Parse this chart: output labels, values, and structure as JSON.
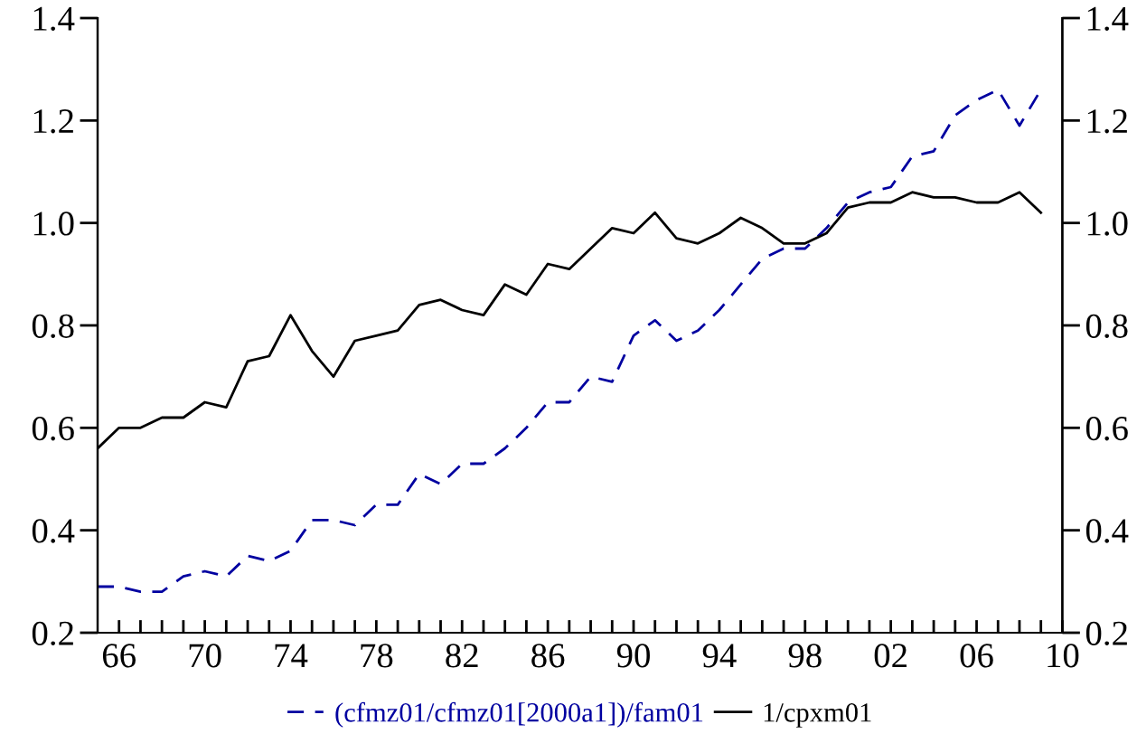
{
  "chart_data": {
    "type": "line",
    "x": [
      1965,
      1966,
      1967,
      1968,
      1969,
      1970,
      1971,
      1972,
      1973,
      1974,
      1975,
      1976,
      1977,
      1978,
      1979,
      1980,
      1981,
      1982,
      1983,
      1984,
      1985,
      1986,
      1987,
      1988,
      1989,
      1990,
      1991,
      1992,
      1993,
      1994,
      1995,
      1996,
      1997,
      1998,
      1999,
      2000,
      2001,
      2002,
      2003,
      2004,
      2005,
      2006,
      2007,
      2008,
      2009
    ],
    "series": [
      {
        "name": "(cfmz01/cfmz01[2000a1])/fam01",
        "color": "#0000a0",
        "line_style": "dashed",
        "values": [
          0.29,
          0.29,
          0.28,
          0.28,
          0.31,
          0.32,
          0.31,
          0.35,
          0.34,
          0.36,
          0.42,
          0.42,
          0.41,
          0.45,
          0.45,
          0.51,
          0.49,
          0.53,
          0.53,
          0.56,
          0.6,
          0.65,
          0.65,
          0.7,
          0.69,
          0.78,
          0.81,
          0.77,
          0.79,
          0.83,
          0.88,
          0.93,
          0.95,
          0.95,
          0.99,
          1.04,
          1.06,
          1.07,
          1.13,
          1.14,
          1.21,
          1.24,
          1.26,
          1.19,
          1.26
        ]
      },
      {
        "name": "1/cpxm01",
        "color": "#000000",
        "line_style": "solid",
        "values": [
          0.56,
          0.6,
          0.6,
          0.62,
          0.62,
          0.65,
          0.64,
          0.73,
          0.74,
          0.82,
          0.75,
          0.7,
          0.77,
          0.78,
          0.79,
          0.84,
          0.85,
          0.83,
          0.82,
          0.88,
          0.86,
          0.92,
          0.91,
          0.95,
          0.99,
          0.98,
          1.02,
          0.97,
          0.96,
          0.98,
          1.01,
          0.99,
          0.96,
          0.96,
          0.98,
          1.03,
          1.04,
          1.04,
          1.06,
          1.05,
          1.05,
          1.04,
          1.04,
          1.06,
          1.02
        ]
      }
    ],
    "xlim": [
      1965,
      2010
    ],
    "xticks": [
      {
        "value": 1966,
        "label": "66"
      },
      {
        "value": 1967,
        "label": null
      },
      {
        "value": 1968,
        "label": null
      },
      {
        "value": 1969,
        "label": null
      },
      {
        "value": 1970,
        "label": "70"
      },
      {
        "value": 1971,
        "label": null
      },
      {
        "value": 1972,
        "label": null
      },
      {
        "value": 1973,
        "label": null
      },
      {
        "value": 1974,
        "label": "74"
      },
      {
        "value": 1975,
        "label": null
      },
      {
        "value": 1976,
        "label": null
      },
      {
        "value": 1977,
        "label": null
      },
      {
        "value": 1978,
        "label": "78"
      },
      {
        "value": 1979,
        "label": null
      },
      {
        "value": 1980,
        "label": null
      },
      {
        "value": 1981,
        "label": null
      },
      {
        "value": 1982,
        "label": "82"
      },
      {
        "value": 1983,
        "label": null
      },
      {
        "value": 1984,
        "label": null
      },
      {
        "value": 1985,
        "label": null
      },
      {
        "value": 1986,
        "label": "86"
      },
      {
        "value": 1987,
        "label": null
      },
      {
        "value": 1988,
        "label": null
      },
      {
        "value": 1989,
        "label": null
      },
      {
        "value": 1990,
        "label": "90"
      },
      {
        "value": 1991,
        "label": null
      },
      {
        "value": 1992,
        "label": null
      },
      {
        "value": 1993,
        "label": null
      },
      {
        "value": 1994,
        "label": "94"
      },
      {
        "value": 1995,
        "label": null
      },
      {
        "value": 1996,
        "label": null
      },
      {
        "value": 1997,
        "label": null
      },
      {
        "value": 1998,
        "label": "98"
      },
      {
        "value": 1999,
        "label": null
      },
      {
        "value": 2000,
        "label": null
      },
      {
        "value": 2001,
        "label": null
      },
      {
        "value": 2002,
        "label": "02"
      },
      {
        "value": 2003,
        "label": null
      },
      {
        "value": 2004,
        "label": null
      },
      {
        "value": 2005,
        "label": null
      },
      {
        "value": 2006,
        "label": "06"
      },
      {
        "value": 2007,
        "label": null
      },
      {
        "value": 2008,
        "label": null
      },
      {
        "value": 2009,
        "label": null
      },
      {
        "value": 2010,
        "label": "10"
      }
    ],
    "ylim": [
      0.2,
      1.4
    ],
    "yticks": [
      0.2,
      0.4,
      0.6,
      0.8,
      {
        "value": 1.0,
        "label": "1.0"
      },
      1.2,
      1.4
    ],
    "y2lim": [
      0.2,
      1.4
    ],
    "y2ticks": [
      0.2,
      0.4,
      0.6,
      0.8,
      {
        "value": 1.0,
        "label": "1.0"
      },
      1.2,
      1.4
    ],
    "legend": "bottom",
    "grid": false
  }
}
